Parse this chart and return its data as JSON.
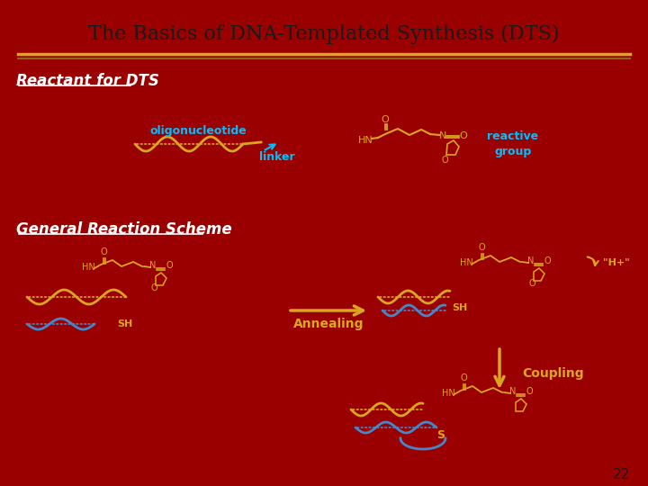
{
  "bg_color": "#9B0000",
  "title": "The Basics of DNA-Templated Synthesis (DTS)",
  "title_color": "#1a1a1a",
  "title_fontsize": 16,
  "separator_colors": [
    "#DAA520",
    "#8B0000"
  ],
  "section1_label": "Reactant for DTS",
  "section1_color": "#FFFFFF",
  "section1_underline": true,
  "section2_label": "General Reaction Scheme",
  "section2_color": "#FFFFFF",
  "section2_underline": true,
  "oligo_label": "oligonucleotide",
  "oligo_color": "#00BFFF",
  "linker_label": "linker",
  "linker_color": "#00BFFF",
  "reactive_label": "reactive\ngroup",
  "reactive_color": "#00BFFF",
  "annealing_label": "Annealing",
  "annealing_color": "#DAA520",
  "coupling_label": "Coupling",
  "coupling_color": "#DAA520",
  "sh_label": "SH",
  "hplus_label": "\"H+\"",
  "dna_gold": "#DAA520",
  "dna_blue": "#4488CC",
  "bond_color": "#DAA520",
  "struct_color": "#DAA520",
  "page_num": "22",
  "page_num_color": "#1a1a1a"
}
